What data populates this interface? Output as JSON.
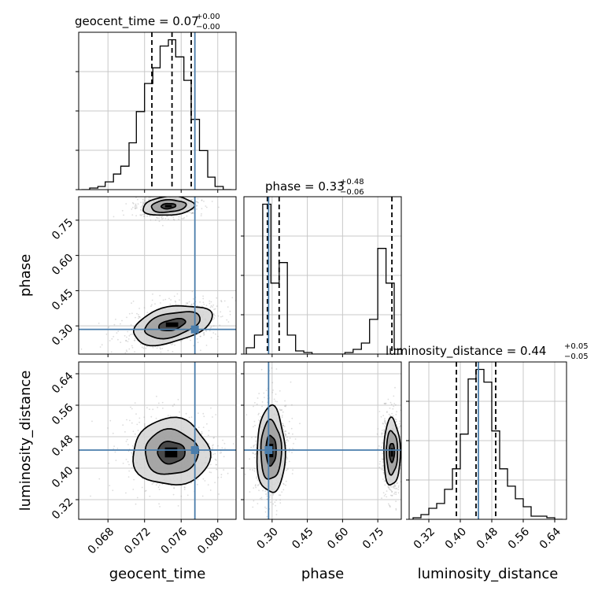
{
  "chart_data": {
    "type": "corner",
    "parameters": [
      "geocent_time",
      "phase",
      "luminosity_distance"
    ],
    "axis_labels": [
      "geocent_time",
      "phase",
      "luminosity_distance"
    ],
    "ranges": [
      [
        0.0648,
        0.082
      ],
      [
        0.18,
        0.85
      ],
      [
        0.27,
        0.67
      ]
    ],
    "ticks": [
      [
        "0.068",
        "0.072",
        "0.076",
        "0.080"
      ],
      [
        "0.30",
        "0.45",
        "0.60",
        "0.75"
      ],
      [
        "0.32",
        "0.40",
        "0.48",
        "0.56",
        "0.64"
      ]
    ],
    "injection": [
      0.0775,
      0.285,
      0.446
    ],
    "titles": [
      {
        "text": "geocent_time = 0.07",
        "sup": "+0.00",
        "sub": "−0.00"
      },
      {
        "text": "phase = 0.33",
        "sup": "+0.48",
        "sub": "−0.06"
      },
      {
        "text": "luminosity_distance = 0.44",
        "sup": "+0.05",
        "sub": "−0.05"
      }
    ],
    "quantiles": [
      [
        0.0728,
        0.075,
        0.0771
      ],
      [
        0.28,
        0.33,
        0.81
      ],
      [
        0.39,
        0.44,
        0.49
      ]
    ],
    "histograms": [
      {
        "edges": [
          0.0651,
          0.066,
          0.0669,
          0.0677,
          0.0686,
          0.0694,
          0.0703,
          0.0711,
          0.072,
          0.0729,
          0.0737,
          0.0746,
          0.0754,
          0.0763,
          0.0771,
          0.078,
          0.0789,
          0.0797,
          0.0806,
          0.0815
        ],
        "counts": [
          0,
          1,
          2,
          5,
          10,
          15,
          30,
          50,
          68,
          78,
          92,
          96,
          85,
          70,
          45,
          25,
          8,
          2,
          0
        ]
      },
      {
        "edges": [
          0.19,
          0.225,
          0.26,
          0.295,
          0.33,
          0.365,
          0.4,
          0.435,
          0.47,
          0.505,
          0.54,
          0.575,
          0.61,
          0.645,
          0.68,
          0.715,
          0.75,
          0.785,
          0.82,
          0.855
        ],
        "counts": [
          4,
          12,
          95,
          45,
          58,
          12,
          2,
          1,
          0,
          0,
          0,
          0,
          1,
          3,
          7,
          22,
          67,
          45,
          3
        ]
      },
      {
        "edges": [
          0.28,
          0.3,
          0.32,
          0.34,
          0.36,
          0.38,
          0.4,
          0.42,
          0.44,
          0.46,
          0.48,
          0.5,
          0.52,
          0.54,
          0.56,
          0.58,
          0.6,
          0.62,
          0.64,
          0.66
        ],
        "counts": [
          1,
          3,
          7,
          10,
          19,
          32,
          54,
          89,
          95,
          87,
          56,
          32,
          21,
          13,
          8,
          2,
          2,
          1,
          0
        ]
      }
    ],
    "contours": [
      {
        "row": 1,
        "col": 0,
        "blobs": [
          {
            "cx": 0.0746,
            "cy": 0.81,
            "rx": [
              0.0028,
              0.0019,
              0.0008
            ],
            "ry": [
              0.04,
              0.026,
              0.011
            ],
            "rot": -4
          },
          {
            "cx": 0.075,
            "cy": 0.305,
            "rx": [
              0.0044,
              0.0031,
              0.0015
            ],
            "ry": [
              0.075,
              0.05,
              0.022
            ],
            "rot": -14
          }
        ]
      },
      {
        "row": 2,
        "col": 0,
        "blobs": [
          {
            "cx": 0.0749,
            "cy": 0.44,
            "rx": [
              0.0042,
              0.0029,
              0.0015
            ],
            "ry": [
              0.085,
              0.057,
              0.028
            ],
            "rot": 0
          }
        ]
      },
      {
        "row": 2,
        "col": 1,
        "blobs": [
          {
            "cx": 0.295,
            "cy": 0.445,
            "rx": [
              0.06,
              0.044,
              0.022
            ],
            "ry": [
              0.11,
              0.075,
              0.038
            ],
            "rot": 0
          },
          {
            "cx": 0.81,
            "cy": 0.44,
            "rx": [
              0.035,
              0.024,
              0.011
            ],
            "ry": [
              0.085,
              0.055,
              0.024
            ],
            "rot": 0
          }
        ]
      }
    ],
    "grid": true,
    "colors": {
      "injection": "#4a7dab",
      "hist": "#000000",
      "grid": "#c8c8c8",
      "samples": "#9a9a9a"
    }
  }
}
